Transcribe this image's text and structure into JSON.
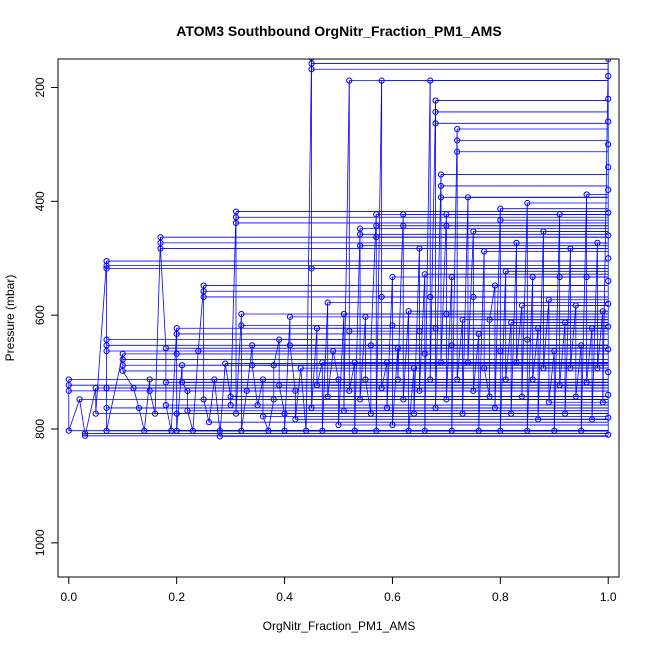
{
  "chart_data": {
    "type": "scatter",
    "title": "ATOM3 Southbound OrgNitr_Fraction_PM1_AMS",
    "xlabel": "OrgNitr_Fraction_PM1_AMS",
    "ylabel": "Pressure (mbar)",
    "xlim": [
      -0.02,
      1.02
    ],
    "ylim": [
      1060,
      150
    ],
    "y_inverted": true,
    "xticks": [
      "0.0",
      "0.2",
      "0.4",
      "0.6",
      "0.8",
      "1.0"
    ],
    "yticks": [
      "200",
      "400",
      "600",
      "800",
      "1000"
    ],
    "grid": false,
    "legend": "none",
    "marker": "open-circle",
    "series": [
      {
        "color": "#0000ff",
        "points": [
          [
            0.0,
            713
          ],
          [
            0.0,
            723
          ],
          [
            0.0,
            733
          ],
          [
            0.0,
            803
          ],
          [
            0.02,
            748
          ],
          [
            0.03,
            808
          ],
          [
            0.03,
            812
          ],
          [
            0.05,
            728
          ],
          [
            0.05,
            773
          ],
          [
            0.07,
            505
          ],
          [
            0.07,
            513
          ],
          [
            0.07,
            518
          ],
          [
            0.07,
            643
          ],
          [
            0.07,
            653
          ],
          [
            0.07,
            663
          ],
          [
            0.07,
            728
          ],
          [
            0.07,
            763
          ],
          [
            0.07,
            803
          ],
          [
            0.1,
            668
          ],
          [
            0.1,
            678
          ],
          [
            0.1,
            688
          ],
          [
            0.1,
            698
          ],
          [
            0.12,
            728
          ],
          [
            0.13,
            763
          ],
          [
            0.14,
            803
          ],
          [
            0.15,
            713
          ],
          [
            0.15,
            733
          ],
          [
            0.16,
            773
          ],
          [
            0.17,
            463
          ],
          [
            0.17,
            473
          ],
          [
            0.17,
            483
          ],
          [
            0.18,
            658
          ],
          [
            0.18,
            718
          ],
          [
            0.18,
            758
          ],
          [
            0.19,
            803
          ],
          [
            0.2,
            623
          ],
          [
            0.2,
            633
          ],
          [
            0.2,
            668
          ],
          [
            0.2,
            773
          ],
          [
            0.2,
            803
          ],
          [
            0.21,
            688
          ],
          [
            0.21,
            718
          ],
          [
            0.22,
            733
          ],
          [
            0.22,
            768
          ],
          [
            0.23,
            803
          ],
          [
            0.24,
            663
          ],
          [
            0.25,
            548
          ],
          [
            0.25,
            558
          ],
          [
            0.25,
            568
          ],
          [
            0.25,
            748
          ],
          [
            0.26,
            788
          ],
          [
            0.27,
            713
          ],
          [
            0.28,
            803
          ],
          [
            0.28,
            813
          ],
          [
            0.29,
            685
          ],
          [
            0.3,
            743
          ],
          [
            0.3,
            758
          ],
          [
            0.31,
            418
          ],
          [
            0.31,
            428
          ],
          [
            0.31,
            438
          ],
          [
            0.31,
            773
          ],
          [
            0.32,
            598
          ],
          [
            0.32,
            618
          ],
          [
            0.32,
            803
          ],
          [
            0.33,
            733
          ],
          [
            0.34,
            653
          ],
          [
            0.34,
            688
          ],
          [
            0.35,
            758
          ],
          [
            0.36,
            713
          ],
          [
            0.36,
            778
          ],
          [
            0.37,
            803
          ],
          [
            0.38,
            748
          ],
          [
            0.38,
            688
          ],
          [
            0.39,
            643
          ],
          [
            0.39,
            723
          ],
          [
            0.4,
            773
          ],
          [
            0.4,
            803
          ],
          [
            0.41,
            603
          ],
          [
            0.41,
            653
          ],
          [
            0.42,
            733
          ],
          [
            0.42,
            783
          ],
          [
            0.43,
            693
          ],
          [
            0.44,
            803
          ],
          [
            0.45,
            148
          ],
          [
            0.45,
            158
          ],
          [
            0.45,
            168
          ],
          [
            0.45,
            518
          ],
          [
            0.45,
            763
          ],
          [
            0.46,
            623
          ],
          [
            0.46,
            723
          ],
          [
            0.47,
            683
          ],
          [
            0.47,
            803
          ],
          [
            0.48,
            578
          ],
          [
            0.48,
            743
          ],
          [
            0.49,
            663
          ],
          [
            0.5,
            713
          ],
          [
            0.5,
            793
          ],
          [
            0.51,
            598
          ],
          [
            0.51,
            768
          ],
          [
            0.52,
            188
          ],
          [
            0.52,
            628
          ],
          [
            0.52,
            733
          ],
          [
            0.53,
            683
          ],
          [
            0.53,
            803
          ],
          [
            0.54,
            448
          ],
          [
            0.54,
            458
          ],
          [
            0.54,
            478
          ],
          [
            0.54,
            748
          ],
          [
            0.55,
            603
          ],
          [
            0.55,
            713
          ],
          [
            0.56,
            773
          ],
          [
            0.56,
            653
          ],
          [
            0.57,
            423
          ],
          [
            0.57,
            443
          ],
          [
            0.57,
            463
          ],
          [
            0.57,
            803
          ],
          [
            0.58,
            188
          ],
          [
            0.58,
            568
          ],
          [
            0.58,
            728
          ],
          [
            0.59,
            683
          ],
          [
            0.59,
            763
          ],
          [
            0.6,
            533
          ],
          [
            0.6,
            618
          ],
          [
            0.6,
            793
          ],
          [
            0.61,
            658
          ],
          [
            0.61,
            713
          ],
          [
            0.62,
            423
          ],
          [
            0.62,
            443
          ],
          [
            0.62,
            748
          ],
          [
            0.63,
            593
          ],
          [
            0.63,
            803
          ],
          [
            0.64,
            693
          ],
          [
            0.64,
            773
          ],
          [
            0.65,
            483
          ],
          [
            0.65,
            628
          ],
          [
            0.65,
            733
          ],
          [
            0.66,
            528
          ],
          [
            0.66,
            668
          ],
          [
            0.66,
            803
          ],
          [
            0.67,
            188
          ],
          [
            0.67,
            568
          ],
          [
            0.67,
            713
          ],
          [
            0.68,
            223
          ],
          [
            0.68,
            243
          ],
          [
            0.68,
            263
          ],
          [
            0.68,
            623
          ],
          [
            0.68,
            763
          ],
          [
            0.69,
            353
          ],
          [
            0.69,
            373
          ],
          [
            0.69,
            393
          ],
          [
            0.69,
            683
          ],
          [
            0.7,
            423
          ],
          [
            0.7,
            443
          ],
          [
            0.7,
            598
          ],
          [
            0.7,
            748
          ],
          [
            0.71,
            533
          ],
          [
            0.71,
            653
          ],
          [
            0.71,
            803
          ],
          [
            0.72,
            273
          ],
          [
            0.72,
            293
          ],
          [
            0.72,
            313
          ],
          [
            0.72,
            713
          ],
          [
            0.73,
            608
          ],
          [
            0.73,
            773
          ],
          [
            0.74,
            393
          ],
          [
            0.74,
            683
          ],
          [
            0.75,
            453
          ],
          [
            0.75,
            568
          ],
          [
            0.75,
            733
          ],
          [
            0.76,
            633
          ],
          [
            0.76,
            803
          ],
          [
            0.77,
            488
          ],
          [
            0.77,
            693
          ],
          [
            0.78,
            743
          ],
          [
            0.78,
            608
          ],
          [
            0.79,
            548
          ],
          [
            0.79,
            763
          ],
          [
            0.8,
            413
          ],
          [
            0.8,
            433
          ],
          [
            0.8,
            663
          ],
          [
            0.8,
            803
          ],
          [
            0.81,
            523
          ],
          [
            0.81,
            713
          ],
          [
            0.82,
            613
          ],
          [
            0.82,
            773
          ],
          [
            0.83,
            473
          ],
          [
            0.83,
            683
          ],
          [
            0.84,
            583
          ],
          [
            0.84,
            743
          ],
          [
            0.85,
            403
          ],
          [
            0.85,
            643
          ],
          [
            0.85,
            803
          ],
          [
            0.86,
            533
          ],
          [
            0.86,
            713
          ],
          [
            0.87,
            623
          ],
          [
            0.87,
            783
          ],
          [
            0.88,
            453
          ],
          [
            0.88,
            693
          ],
          [
            0.89,
            573
          ],
          [
            0.89,
            753
          ],
          [
            0.9,
            663
          ],
          [
            0.9,
            803
          ],
          [
            0.91,
            423
          ],
          [
            0.91,
            533
          ],
          [
            0.91,
            723
          ],
          [
            0.92,
            613
          ],
          [
            0.92,
            773
          ],
          [
            0.93,
            483
          ],
          [
            0.93,
            693
          ],
          [
            0.94,
            583
          ],
          [
            0.94,
            743
          ],
          [
            0.95,
            653
          ],
          [
            0.95,
            803
          ],
          [
            0.96,
            388
          ],
          [
            0.96,
            533
          ],
          [
            0.96,
            718
          ],
          [
            0.97,
            623
          ],
          [
            0.97,
            783
          ],
          [
            0.98,
            473
          ],
          [
            0.98,
            693
          ],
          [
            0.99,
            593
          ],
          [
            0.99,
            753
          ],
          [
            1.0,
            150
          ],
          [
            1.0,
            180
          ],
          [
            1.0,
            220
          ],
          [
            1.0,
            260
          ],
          [
            1.0,
            300
          ],
          [
            1.0,
            340
          ],
          [
            1.0,
            380
          ],
          [
            1.0,
            420
          ],
          [
            1.0,
            460
          ],
          [
            1.0,
            500
          ],
          [
            1.0,
            540
          ],
          [
            1.0,
            580
          ],
          [
            1.0,
            620
          ],
          [
            1.0,
            660
          ],
          [
            1.0,
            700
          ],
          [
            1.0,
            740
          ],
          [
            1.0,
            780
          ],
          [
            1.0,
            810
          ]
        ]
      }
    ]
  }
}
